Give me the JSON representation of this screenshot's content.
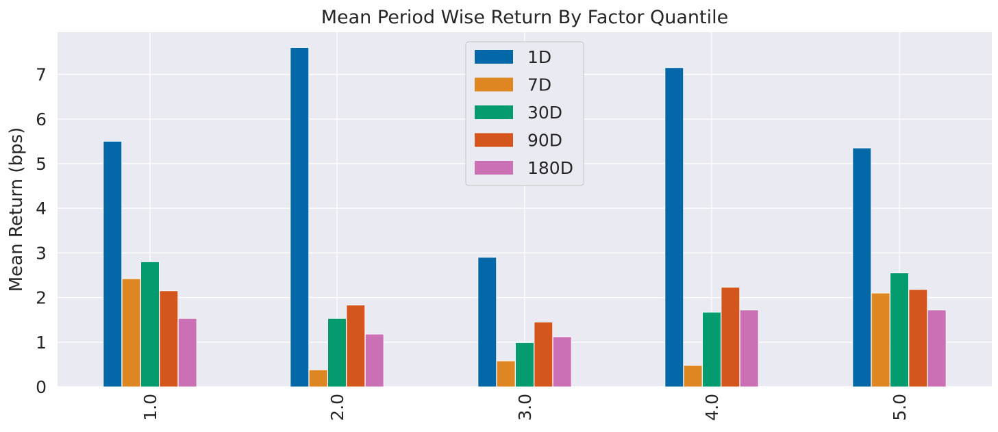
{
  "chart_data": {
    "type": "bar",
    "title": "Mean Period Wise Return By Factor Quantile",
    "xlabel": "",
    "ylabel": "Mean Return (bps)",
    "categories": [
      "1.0",
      "2.0",
      "3.0",
      "4.0",
      "5.0"
    ],
    "series": [
      {
        "name": "1D",
        "color": "#0468a8",
        "values": [
          5.5,
          7.6,
          2.9,
          7.15,
          5.35
        ]
      },
      {
        "name": "7D",
        "color": "#de8622",
        "values": [
          2.42,
          0.38,
          0.58,
          0.48,
          2.1
        ]
      },
      {
        "name": "30D",
        "color": "#049b6e",
        "values": [
          2.8,
          1.53,
          0.99,
          1.67,
          2.55
        ]
      },
      {
        "name": "90D",
        "color": "#d5561c",
        "values": [
          2.15,
          1.83,
          1.45,
          2.23,
          2.18
        ]
      },
      {
        "name": "180D",
        "color": "#cc70b6",
        "values": [
          1.53,
          1.18,
          1.12,
          1.72,
          1.72
        ]
      }
    ],
    "ylim": [
      0,
      7.8
    ],
    "yticks": [
      "0",
      "1",
      "2",
      "3",
      "4",
      "5",
      "6",
      "7"
    ],
    "grid": true,
    "legend_position": "top-center",
    "x_tick_rotation": "vertical"
  }
}
